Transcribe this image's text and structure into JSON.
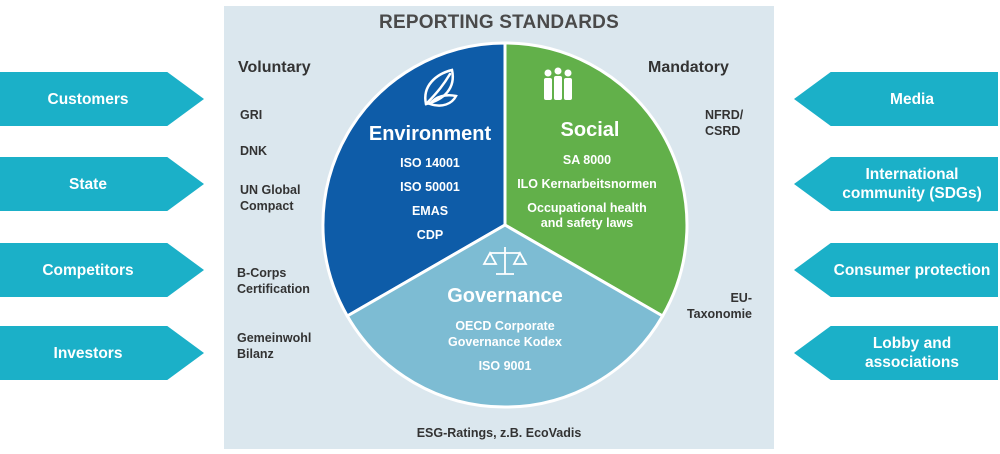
{
  "title": "REPORTING STANDARDS",
  "voluntary": {
    "heading": "Voluntary",
    "items": [
      "GRI",
      "DNK",
      "UN Global Compact",
      "B-Corps Certification",
      "Gemeinwohl Bilanz"
    ]
  },
  "mandatory": {
    "heading": "Mandatory",
    "items": [
      "NFRD/ CSRD",
      "EU-Taxonomie"
    ]
  },
  "stakeholders_left": [
    "Customers",
    "State",
    "Competitors",
    "Investors"
  ],
  "stakeholders_right": [
    "Media",
    "International community (SDGs)",
    "Consumer protection",
    "Lobby and associations"
  ],
  "segments": {
    "environment": {
      "title": "Environment",
      "items": [
        "ISO 14001",
        "ISO 50001",
        "EMAS",
        "CDP"
      ],
      "icon": "leaf-icon",
      "color": "#0e5ca8"
    },
    "social": {
      "title": "Social",
      "items": [
        "SA 8000",
        "ILO Kernarbeitsnormen",
        "Occupational health",
        "and safety laws"
      ],
      "icon": "people-icon",
      "color": "#62b04a"
    },
    "governance": {
      "title": "Governance",
      "items": [
        "OECD Corporate",
        "Governance Kodex",
        "ISO 9001"
      ],
      "icon": "scales-icon",
      "color": "#7dbcd3"
    }
  },
  "footer": "ESG-Ratings, z.B. EcoVadis",
  "colors": {
    "arrow": "#1bb0c8",
    "panel": "#dbe7ee"
  }
}
